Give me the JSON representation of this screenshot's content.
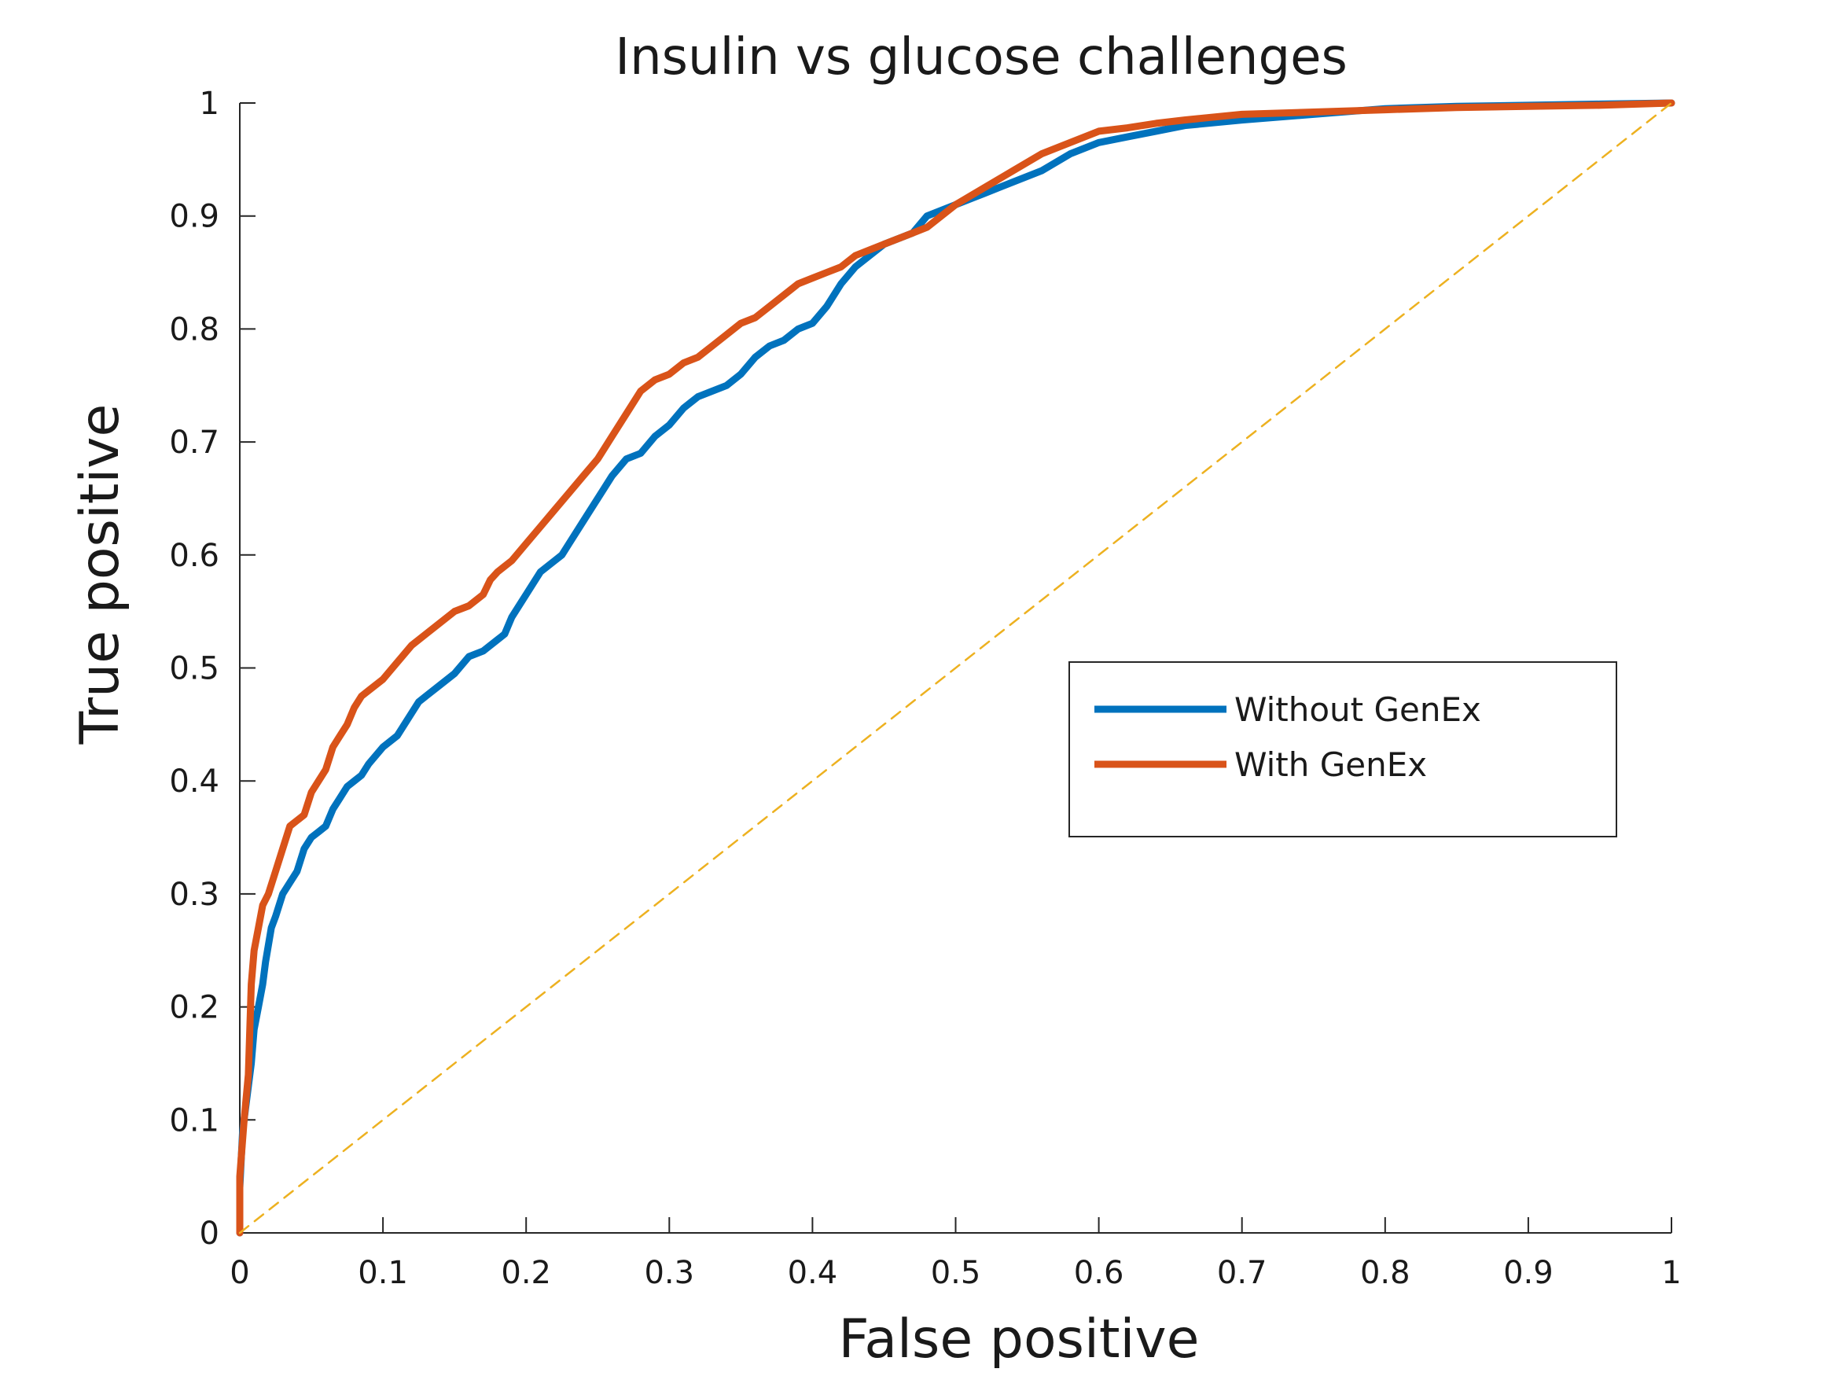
{
  "chart_data": {
    "type": "line",
    "title": "Insulin vs glucose challenges",
    "xlabel": "False positive",
    "ylabel": "True positive",
    "xlim": [
      0,
      1
    ],
    "ylim": [
      0,
      1
    ],
    "grid": false,
    "legend_position": "center-right",
    "x_ticks": [
      "0",
      "0.1",
      "0.2",
      "0.3",
      "0.4",
      "0.5",
      "0.6",
      "0.7",
      "0.8",
      "0.9",
      "1"
    ],
    "y_ticks": [
      "0",
      "0.1",
      "0.2",
      "0.3",
      "0.4",
      "0.5",
      "0.6",
      "0.7",
      "0.8",
      "0.9",
      "1"
    ],
    "series": [
      {
        "name": "Without GenEx",
        "color": "#0072BD",
        "style": "solid",
        "x": [
          0,
          0,
          0.002,
          0.005,
          0.008,
          0.01,
          0.013,
          0.016,
          0.018,
          0.022,
          0.025,
          0.03,
          0.035,
          0.04,
          0.045,
          0.05,
          0.055,
          0.06,
          0.065,
          0.07,
          0.075,
          0.08,
          0.085,
          0.09,
          0.1,
          0.11,
          0.12,
          0.125,
          0.13,
          0.14,
          0.15,
          0.16,
          0.17,
          0.18,
          0.185,
          0.19,
          0.2,
          0.21,
          0.22,
          0.225,
          0.23,
          0.24,
          0.25,
          0.26,
          0.27,
          0.28,
          0.29,
          0.3,
          0.31,
          0.32,
          0.33,
          0.34,
          0.35,
          0.36,
          0.37,
          0.38,
          0.39,
          0.4,
          0.41,
          0.42,
          0.43,
          0.44,
          0.45,
          0.46,
          0.47,
          0.48,
          0.5,
          0.52,
          0.54,
          0.56,
          0.58,
          0.6,
          0.62,
          0.64,
          0.66,
          0.7,
          0.75,
          0.8,
          0.85,
          0.9,
          0.95,
          1.0
        ],
        "y": [
          0,
          0.04,
          0.09,
          0.12,
          0.15,
          0.18,
          0.2,
          0.22,
          0.24,
          0.27,
          0.28,
          0.3,
          0.31,
          0.32,
          0.34,
          0.35,
          0.355,
          0.36,
          0.375,
          0.385,
          0.395,
          0.4,
          0.405,
          0.415,
          0.43,
          0.44,
          0.46,
          0.47,
          0.475,
          0.485,
          0.495,
          0.51,
          0.515,
          0.525,
          0.53,
          0.545,
          0.565,
          0.585,
          0.595,
          0.6,
          0.61,
          0.63,
          0.65,
          0.67,
          0.685,
          0.69,
          0.705,
          0.715,
          0.73,
          0.74,
          0.745,
          0.75,
          0.76,
          0.775,
          0.785,
          0.79,
          0.8,
          0.805,
          0.82,
          0.84,
          0.855,
          0.865,
          0.875,
          0.88,
          0.885,
          0.9,
          0.91,
          0.92,
          0.93,
          0.94,
          0.955,
          0.965,
          0.97,
          0.975,
          0.98,
          0.985,
          0.99,
          0.995,
          0.997,
          0.998,
          0.999,
          1.0
        ]
      },
      {
        "name": "With GenEx",
        "color": "#D95319",
        "style": "solid",
        "x": [
          0,
          0,
          0.003,
          0.006,
          0.008,
          0.01,
          0.013,
          0.016,
          0.02,
          0.025,
          0.03,
          0.035,
          0.04,
          0.045,
          0.05,
          0.055,
          0.06,
          0.065,
          0.07,
          0.075,
          0.08,
          0.085,
          0.09,
          0.1,
          0.11,
          0.12,
          0.13,
          0.14,
          0.15,
          0.16,
          0.17,
          0.175,
          0.18,
          0.19,
          0.2,
          0.21,
          0.22,
          0.23,
          0.24,
          0.25,
          0.26,
          0.27,
          0.28,
          0.29,
          0.3,
          0.31,
          0.32,
          0.33,
          0.34,
          0.35,
          0.36,
          0.37,
          0.38,
          0.39,
          0.4,
          0.41,
          0.42,
          0.43,
          0.44,
          0.45,
          0.46,
          0.47,
          0.48,
          0.49,
          0.5,
          0.52,
          0.54,
          0.56,
          0.58,
          0.6,
          0.62,
          0.64,
          0.66,
          0.7,
          0.75,
          0.8,
          0.85,
          0.9,
          0.95,
          1.0
        ],
        "y": [
          0,
          0.05,
          0.1,
          0.14,
          0.22,
          0.25,
          0.27,
          0.29,
          0.3,
          0.32,
          0.34,
          0.36,
          0.365,
          0.37,
          0.39,
          0.4,
          0.41,
          0.43,
          0.44,
          0.45,
          0.465,
          0.475,
          0.48,
          0.49,
          0.505,
          0.52,
          0.53,
          0.54,
          0.55,
          0.555,
          0.565,
          0.578,
          0.585,
          0.595,
          0.61,
          0.625,
          0.64,
          0.655,
          0.67,
          0.685,
          0.705,
          0.725,
          0.745,
          0.755,
          0.76,
          0.77,
          0.775,
          0.785,
          0.795,
          0.805,
          0.81,
          0.82,
          0.83,
          0.84,
          0.845,
          0.85,
          0.855,
          0.865,
          0.87,
          0.875,
          0.88,
          0.885,
          0.89,
          0.9,
          0.91,
          0.925,
          0.94,
          0.955,
          0.965,
          0.975,
          0.978,
          0.982,
          0.985,
          0.99,
          0.992,
          0.994,
          0.996,
          0.997,
          0.998,
          1.0
        ]
      },
      {
        "color": "#EDB120",
        "style": "dashed",
        "x": [
          0,
          1
        ],
        "y": [
          0,
          1
        ]
      }
    ]
  }
}
